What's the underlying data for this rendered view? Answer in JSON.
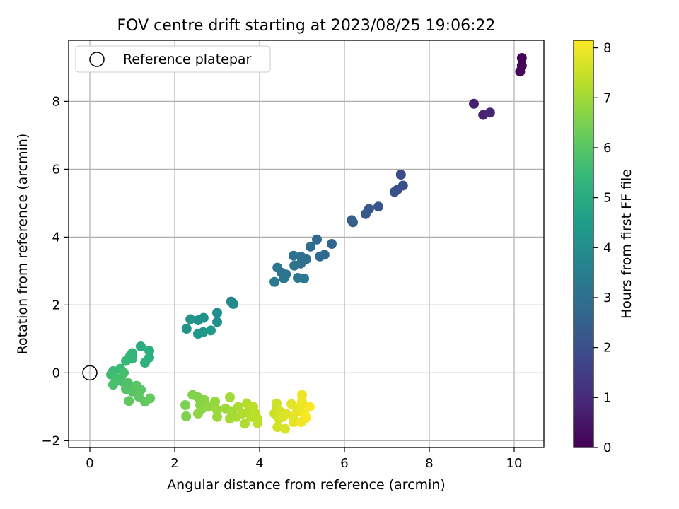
{
  "chart_data": {
    "type": "scatter",
    "title": "FOV centre drift starting at 2023/08/25 19:06:22",
    "xlabel": "Angular distance from reference (arcmin)",
    "ylabel": "Rotation from reference (arcmin)",
    "xlim": [
      -0.5,
      10.7
    ],
    "ylim": [
      -2.2,
      9.8
    ],
    "xticks": [
      0,
      2,
      4,
      6,
      8,
      10
    ],
    "yticks": [
      -2,
      0,
      2,
      4,
      6,
      8
    ],
    "grid": true,
    "legend": {
      "placement": "top-left",
      "entries": [
        "Reference platepar"
      ]
    },
    "reference_point": {
      "x": 0,
      "y": 0
    },
    "colorbar": {
      "label": "Hours from first FF file",
      "range": [
        0,
        8.15
      ],
      "ticks": [
        0,
        1,
        2,
        3,
        4,
        5,
        6,
        7,
        8
      ],
      "colormap": "viridis",
      "stops": [
        "#440154",
        "#482878",
        "#3e4989",
        "#31688e",
        "#26828e",
        "#1f9e89",
        "#35b779",
        "#6ece58",
        "#b5de2b",
        "#fde725"
      ]
    },
    "points": [
      {
        "x": 10.18,
        "y": 9.28,
        "c": 0.05
      },
      {
        "x": 10.18,
        "y": 9.05,
        "c": 0.1
      },
      {
        "x": 10.14,
        "y": 8.88,
        "c": 0.15
      },
      {
        "x": 9.05,
        "y": 7.93,
        "c": 0.7
      },
      {
        "x": 9.27,
        "y": 7.6,
        "c": 0.8
      },
      {
        "x": 9.43,
        "y": 7.67,
        "c": 0.85
      },
      {
        "x": 7.33,
        "y": 5.84,
        "c": 1.9
      },
      {
        "x": 7.38,
        "y": 5.52,
        "c": 1.95
      },
      {
        "x": 7.25,
        "y": 5.4,
        "c": 2.0
      },
      {
        "x": 7.18,
        "y": 5.33,
        "c": 2.05
      },
      {
        "x": 6.8,
        "y": 4.9,
        "c": 2.2
      },
      {
        "x": 6.58,
        "y": 4.83,
        "c": 2.25
      },
      {
        "x": 6.5,
        "y": 4.68,
        "c": 2.3
      },
      {
        "x": 6.2,
        "y": 4.44,
        "c": 2.4
      },
      {
        "x": 6.17,
        "y": 4.5,
        "c": 2.45
      },
      {
        "x": 5.7,
        "y": 3.8,
        "c": 2.7
      },
      {
        "x": 5.35,
        "y": 3.93,
        "c": 2.75
      },
      {
        "x": 5.53,
        "y": 3.48,
        "c": 2.8
      },
      {
        "x": 5.42,
        "y": 3.43,
        "c": 2.85
      },
      {
        "x": 5.2,
        "y": 3.72,
        "c": 2.9
      },
      {
        "x": 5.1,
        "y": 3.35,
        "c": 2.95
      },
      {
        "x": 4.98,
        "y": 3.42,
        "c": 3.0
      },
      {
        "x": 4.97,
        "y": 3.22,
        "c": 3.0
      },
      {
        "x": 4.8,
        "y": 3.45,
        "c": 3.05
      },
      {
        "x": 4.82,
        "y": 3.16,
        "c": 3.1
      },
      {
        "x": 4.62,
        "y": 2.9,
        "c": 3.15
      },
      {
        "x": 4.52,
        "y": 2.95,
        "c": 3.15
      },
      {
        "x": 4.42,
        "y": 3.1,
        "c": 3.2
      },
      {
        "x": 4.57,
        "y": 2.78,
        "c": 3.2
      },
      {
        "x": 4.9,
        "y": 2.8,
        "c": 3.25
      },
      {
        "x": 5.05,
        "y": 2.78,
        "c": 3.3
      },
      {
        "x": 4.35,
        "y": 2.68,
        "c": 3.3
      },
      {
        "x": 3.33,
        "y": 2.1,
        "c": 3.8
      },
      {
        "x": 3.38,
        "y": 2.03,
        "c": 3.85
      },
      {
        "x": 3.0,
        "y": 1.77,
        "c": 4.0
      },
      {
        "x": 3.0,
        "y": 1.5,
        "c": 4.05
      },
      {
        "x": 2.68,
        "y": 1.62,
        "c": 4.1
      },
      {
        "x": 2.55,
        "y": 1.55,
        "c": 4.15
      },
      {
        "x": 2.37,
        "y": 1.58,
        "c": 4.2
      },
      {
        "x": 2.28,
        "y": 1.3,
        "c": 4.25
      },
      {
        "x": 2.55,
        "y": 1.15,
        "c": 4.3
      },
      {
        "x": 2.67,
        "y": 1.2,
        "c": 4.35
      },
      {
        "x": 2.85,
        "y": 1.25,
        "c": 4.4
      },
      {
        "x": 1.2,
        "y": 0.78,
        "c": 5.05
      },
      {
        "x": 1.4,
        "y": 0.65,
        "c": 5.1
      },
      {
        "x": 1.4,
        "y": 0.45,
        "c": 5.15
      },
      {
        "x": 1.3,
        "y": 0.3,
        "c": 5.2
      },
      {
        "x": 1.0,
        "y": 0.58,
        "c": 5.3
      },
      {
        "x": 0.95,
        "y": 0.5,
        "c": 5.35
      },
      {
        "x": 1.0,
        "y": 0.42,
        "c": 5.4
      },
      {
        "x": 0.85,
        "y": 0.35,
        "c": 5.45
      },
      {
        "x": 0.72,
        "y": 0.12,
        "c": 5.5
      },
      {
        "x": 0.55,
        "y": 0.05,
        "c": 5.55
      },
      {
        "x": 0.5,
        "y": -0.05,
        "c": 5.6
      },
      {
        "x": 0.62,
        "y": -0.15,
        "c": 5.65
      },
      {
        "x": 0.8,
        "y": 0.0,
        "c": 5.7
      },
      {
        "x": 0.75,
        "y": -0.25,
        "c": 5.75
      },
      {
        "x": 0.55,
        "y": -0.35,
        "c": 5.8
      },
      {
        "x": 0.9,
        "y": -0.3,
        "c": 5.85
      },
      {
        "x": 0.85,
        "y": -0.48,
        "c": 5.9
      },
      {
        "x": 1.0,
        "y": -0.55,
        "c": 5.95
      },
      {
        "x": 1.1,
        "y": -0.38,
        "c": 6.0
      },
      {
        "x": 1.2,
        "y": -0.5,
        "c": 6.0
      },
      {
        "x": 1.15,
        "y": -0.7,
        "c": 6.05
      },
      {
        "x": 0.92,
        "y": -0.83,
        "c": 6.1
      },
      {
        "x": 1.3,
        "y": -0.85,
        "c": 6.15
      },
      {
        "x": 1.42,
        "y": -0.75,
        "c": 6.2
      },
      {
        "x": 2.25,
        "y": -0.95,
        "c": 6.5
      },
      {
        "x": 2.27,
        "y": -1.28,
        "c": 6.55
      },
      {
        "x": 2.42,
        "y": -0.65,
        "c": 6.6
      },
      {
        "x": 2.55,
        "y": -0.72,
        "c": 6.6
      },
      {
        "x": 2.6,
        "y": -0.95,
        "c": 6.65
      },
      {
        "x": 2.7,
        "y": -0.8,
        "c": 6.7
      },
      {
        "x": 2.65,
        "y": -1.05,
        "c": 6.7
      },
      {
        "x": 2.55,
        "y": -1.2,
        "c": 6.75
      },
      {
        "x": 2.8,
        "y": -1.0,
        "c": 6.8
      },
      {
        "x": 2.95,
        "y": -0.85,
        "c": 6.85
      },
      {
        "x": 3.0,
        "y": -1.1,
        "c": 6.9
      },
      {
        "x": 3.0,
        "y": -1.3,
        "c": 6.9
      },
      {
        "x": 3.2,
        "y": -1.05,
        "c": 6.95
      },
      {
        "x": 3.3,
        "y": -0.72,
        "c": 7.0
      },
      {
        "x": 3.35,
        "y": -1.15,
        "c": 7.0
      },
      {
        "x": 3.3,
        "y": -1.35,
        "c": 7.05
      },
      {
        "x": 3.45,
        "y": -1.3,
        "c": 7.1
      },
      {
        "x": 3.5,
        "y": -1.0,
        "c": 7.1
      },
      {
        "x": 3.6,
        "y": -1.2,
        "c": 7.15
      },
      {
        "x": 3.65,
        "y": -1.5,
        "c": 7.15
      },
      {
        "x": 3.7,
        "y": -0.9,
        "c": 7.2
      },
      {
        "x": 3.75,
        "y": -1.1,
        "c": 7.2
      },
      {
        "x": 3.8,
        "y": -1.3,
        "c": 7.25
      },
      {
        "x": 3.9,
        "y": -1.2,
        "c": 7.3
      },
      {
        "x": 3.95,
        "y": -1.35,
        "c": 7.3
      },
      {
        "x": 3.95,
        "y": -1.48,
        "c": 7.35
      },
      {
        "x": 3.85,
        "y": -1.0,
        "c": 7.35
      },
      {
        "x": 4.35,
        "y": -1.2,
        "c": 7.5
      },
      {
        "x": 4.4,
        "y": -0.9,
        "c": 7.55
      },
      {
        "x": 4.4,
        "y": -1.05,
        "c": 7.55
      },
      {
        "x": 4.45,
        "y": -1.35,
        "c": 7.6
      },
      {
        "x": 4.42,
        "y": -1.6,
        "c": 7.6
      },
      {
        "x": 4.5,
        "y": -1.15,
        "c": 7.65
      },
      {
        "x": 4.55,
        "y": -1.3,
        "c": 7.7
      },
      {
        "x": 4.6,
        "y": -1.65,
        "c": 7.7
      },
      {
        "x": 4.62,
        "y": -1.2,
        "c": 7.75
      },
      {
        "x": 4.75,
        "y": -0.92,
        "c": 7.8
      },
      {
        "x": 4.8,
        "y": -1.3,
        "c": 7.8
      },
      {
        "x": 4.8,
        "y": -1.45,
        "c": 7.85
      },
      {
        "x": 4.88,
        "y": -1.15,
        "c": 7.85
      },
      {
        "x": 4.95,
        "y": -1.0,
        "c": 7.9
      },
      {
        "x": 5.0,
        "y": -0.65,
        "c": 7.95
      },
      {
        "x": 5.0,
        "y": -0.85,
        "c": 7.95
      },
      {
        "x": 4.98,
        "y": -1.45,
        "c": 8.0
      },
      {
        "x": 5.05,
        "y": -1.2,
        "c": 8.0
      },
      {
        "x": 5.08,
        "y": -1.35,
        "c": 8.05
      },
      {
        "x": 5.18,
        "y": -1.0,
        "c": 8.1
      },
      {
        "x": 5.1,
        "y": -1.3,
        "c": 8.1
      }
    ]
  }
}
